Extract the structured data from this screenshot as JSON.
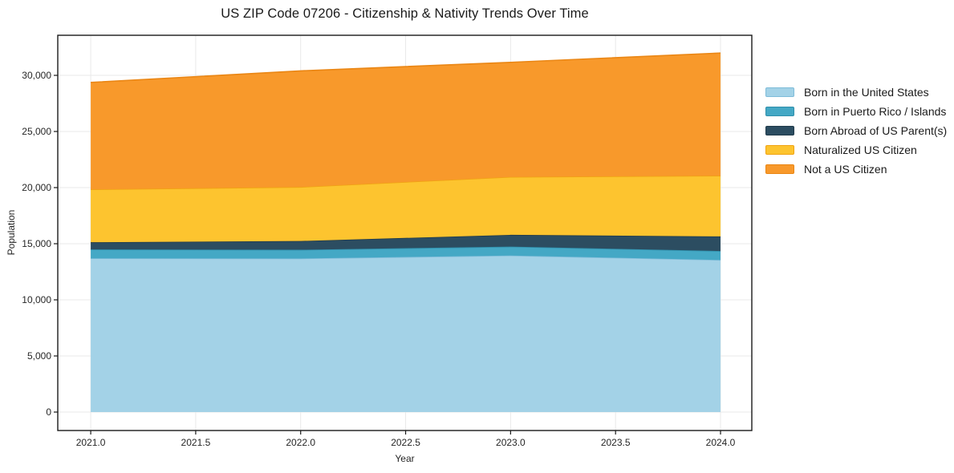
{
  "chart_data": {
    "type": "area",
    "stacked": true,
    "title": "US ZIP Code 07206 - Citizenship & Nativity Trends Over Time",
    "xlabel": "Year",
    "ylabel": "Population",
    "x": [
      2021,
      2022,
      2023,
      2024
    ],
    "series": [
      {
        "name": "Born in the United States",
        "values": [
          13700,
          13680,
          13950,
          13550
        ],
        "fill": "#a3d2e7",
        "edge": "#7fbcd9"
      },
      {
        "name": "Born in Puerto Rico / Islands",
        "values": [
          790,
          780,
          790,
          800
        ],
        "fill": "#44a8c5",
        "edge": "#2f8fab"
      },
      {
        "name": "Born Abroad of US Parent(s)",
        "values": [
          640,
          780,
          1050,
          1300
        ],
        "fill": "#2c4d61",
        "edge": "#203a4a"
      },
      {
        "name": "Naturalized US Citizen",
        "values": [
          4710,
          4810,
          5160,
          5410
        ],
        "fill": "#fdc42f",
        "edge": "#f0a312"
      },
      {
        "name": "Not a US Citizen",
        "values": [
          9530,
          10350,
          10210,
          10930
        ],
        "fill": "#f8992b",
        "edge": "#ea8614"
      }
    ],
    "xlim": [
      2020.843,
      2024.149
    ],
    "ylim": [
      -1643,
      33571
    ],
    "xticks": [
      2021.0,
      2021.5,
      2022.0,
      2022.5,
      2023.0,
      2023.5,
      2024.0
    ],
    "xticklabels": [
      "2021.0",
      "2021.5",
      "2022.0",
      "2022.5",
      "2023.0",
      "2023.5",
      "2024.0"
    ],
    "yticks": [
      0,
      5000,
      10000,
      15000,
      20000,
      25000,
      30000
    ],
    "yticklabels": [
      "0",
      "5,000",
      "10,000",
      "15,000",
      "20,000",
      "25,000",
      "30,000"
    ],
    "grid": true,
    "grid_color": "#e9e9e9",
    "spine_color": "#1a1a1a",
    "tick_label_color": "#262626",
    "legend_position": "right"
  }
}
